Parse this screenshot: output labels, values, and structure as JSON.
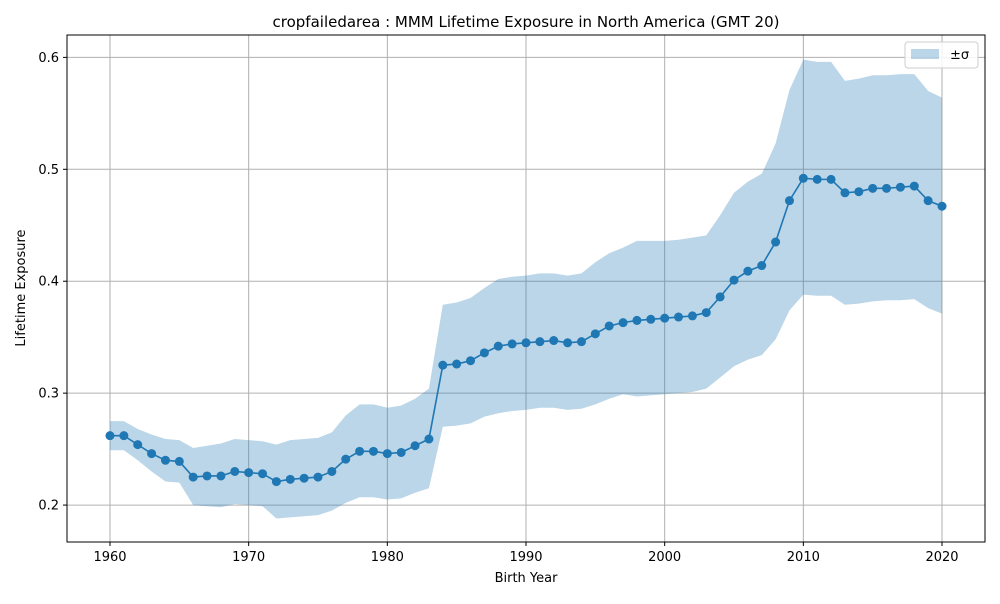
{
  "chart_data": {
    "type": "line",
    "title": "cropfailedarea : MMM Lifetime Exposure in North America (GMT 20)",
    "xlabel": "Birth Year",
    "ylabel": "Lifetime Exposure",
    "xlim": [
      1956.9,
      2023.1
    ],
    "ylim": [
      0.167,
      0.62
    ],
    "xticks": [
      1960,
      1970,
      1980,
      1990,
      2000,
      2010,
      2020
    ],
    "yticks": [
      0.2,
      0.3,
      0.4,
      0.5,
      0.6
    ],
    "xtick_labels": [
      "1960",
      "1970",
      "1980",
      "1990",
      "2000",
      "2010",
      "2020"
    ],
    "ytick_labels": [
      "0.2",
      "0.3",
      "0.4",
      "0.5",
      "0.6"
    ],
    "grid": true,
    "legend": {
      "position": "top-right",
      "entries": [
        "±σ"
      ]
    },
    "colors": {
      "line": "#1f77b4",
      "band": "#1f77b4",
      "band_opacity": 0.3,
      "grid": "#b0b0b0"
    },
    "x": [
      1960,
      1961,
      1962,
      1963,
      1964,
      1965,
      1966,
      1967,
      1968,
      1969,
      1970,
      1971,
      1972,
      1973,
      1974,
      1975,
      1976,
      1977,
      1978,
      1979,
      1980,
      1981,
      1982,
      1983,
      1984,
      1985,
      1986,
      1987,
      1988,
      1989,
      1990,
      1991,
      1992,
      1993,
      1994,
      1995,
      1996,
      1997,
      1998,
      1999,
      2000,
      2001,
      2002,
      2003,
      2004,
      2005,
      2006,
      2007,
      2008,
      2009,
      2010,
      2011,
      2012,
      2013,
      2014,
      2015,
      2016,
      2017,
      2018,
      2019,
      2020
    ],
    "series": [
      {
        "name": "mean",
        "values": [
          0.262,
          0.262,
          0.254,
          0.246,
          0.24,
          0.239,
          0.225,
          0.226,
          0.226,
          0.23,
          0.229,
          0.228,
          0.221,
          0.223,
          0.224,
          0.225,
          0.23,
          0.241,
          0.248,
          0.248,
          0.246,
          0.247,
          0.253,
          0.259,
          0.325,
          0.326,
          0.329,
          0.336,
          0.342,
          0.344,
          0.345,
          0.346,
          0.347,
          0.345,
          0.346,
          0.353,
          0.36,
          0.363,
          0.365,
          0.366,
          0.367,
          0.368,
          0.369,
          0.372,
          0.386,
          0.401,
          0.409,
          0.414,
          0.435,
          0.472,
          0.492,
          0.491,
          0.491,
          0.479,
          0.48,
          0.483,
          0.483,
          0.484,
          0.485,
          0.472,
          0.467
        ]
      },
      {
        "name": "±σ",
        "upper": [
          0.275,
          0.275,
          0.268,
          0.263,
          0.259,
          0.258,
          0.251,
          0.253,
          0.255,
          0.259,
          0.258,
          0.257,
          0.254,
          0.258,
          0.259,
          0.26,
          0.265,
          0.28,
          0.29,
          0.29,
          0.287,
          0.289,
          0.295,
          0.304,
          0.379,
          0.381,
          0.385,
          0.394,
          0.402,
          0.404,
          0.405,
          0.407,
          0.407,
          0.405,
          0.407,
          0.417,
          0.425,
          0.43,
          0.436,
          0.436,
          0.436,
          0.437,
          0.439,
          0.441,
          0.459,
          0.479,
          0.489,
          0.496,
          0.523,
          0.571,
          0.598,
          0.596,
          0.596,
          0.579,
          0.581,
          0.584,
          0.584,
          0.585,
          0.585,
          0.57,
          0.564
        ],
        "lower": [
          0.249,
          0.249,
          0.24,
          0.23,
          0.221,
          0.22,
          0.2,
          0.199,
          0.198,
          0.201,
          0.2,
          0.199,
          0.188,
          0.189,
          0.19,
          0.191,
          0.195,
          0.202,
          0.207,
          0.207,
          0.205,
          0.206,
          0.211,
          0.215,
          0.27,
          0.271,
          0.273,
          0.279,
          0.282,
          0.284,
          0.285,
          0.287,
          0.287,
          0.285,
          0.286,
          0.29,
          0.295,
          0.299,
          0.297,
          0.298,
          0.299,
          0.3,
          0.301,
          0.304,
          0.314,
          0.324,
          0.33,
          0.334,
          0.348,
          0.374,
          0.388,
          0.387,
          0.387,
          0.379,
          0.38,
          0.382,
          0.383,
          0.383,
          0.384,
          0.376,
          0.371
        ]
      }
    ]
  }
}
